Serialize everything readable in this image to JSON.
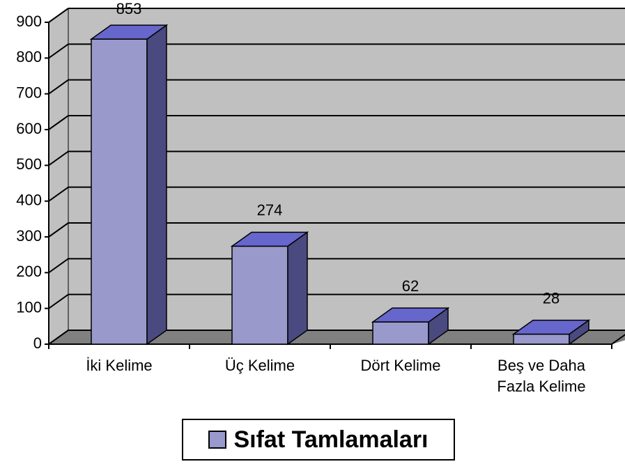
{
  "chart_data": {
    "type": "bar3d",
    "categories": [
      "İki Kelime",
      "Üç Kelime",
      "Dört Kelime",
      "Beş ve Daha Fazla Kelime"
    ],
    "series": [
      {
        "name": "Sıfat Tamlamaları",
        "color": "#9999cc",
        "values": [
          853,
          274,
          62,
          28
        ]
      }
    ],
    "ylim": [
      0,
      900
    ],
    "yticks": [
      0,
      100,
      200,
      300,
      400,
      500,
      600,
      700,
      800,
      900
    ],
    "grid": true,
    "legend": "bottom"
  }
}
